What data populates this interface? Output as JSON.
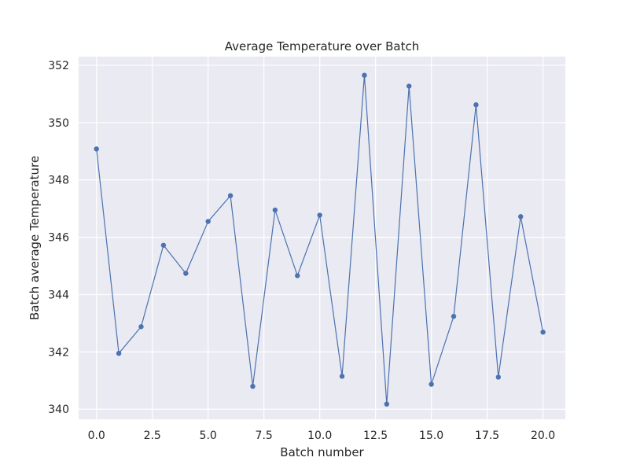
{
  "chart_data": {
    "type": "line",
    "title": "Average Temperature over Batch",
    "xlabel": "Batch number",
    "ylabel": "Batch average Temperature",
    "xlim": [
      -0.8,
      21.0
    ],
    "ylim": [
      339.65,
      352.3
    ],
    "grid": true,
    "legend": "none",
    "x_ticks": [
      0.0,
      2.5,
      5.0,
      7.5,
      10.0,
      12.5,
      15.0,
      17.5,
      20.0
    ],
    "x_tick_labels": [
      "0.0",
      "2.5",
      "5.0",
      "7.5",
      "10.0",
      "12.5",
      "15.0",
      "17.5",
      "20.0"
    ],
    "y_ticks": [
      340,
      342,
      344,
      346,
      348,
      350,
      352
    ],
    "y_tick_labels": [
      "340",
      "342",
      "344",
      "346",
      "348",
      "350",
      "352"
    ],
    "series": [
      {
        "x": [
          0,
          1,
          2,
          3,
          4,
          5,
          6,
          7,
          8,
          9,
          10,
          11,
          12,
          13,
          14,
          15,
          16,
          17,
          18,
          19,
          20
        ],
        "values": [
          349.08,
          341.95,
          342.88,
          345.72,
          344.74,
          346.55,
          347.45,
          340.8,
          346.95,
          344.66,
          346.77,
          341.15,
          351.65,
          340.18,
          351.27,
          340.87,
          343.24,
          350.62,
          341.12,
          346.72,
          342.69
        ],
        "color": "#4c72b0"
      }
    ],
    "colors": {
      "plot_background": "#eaeaf2",
      "grid": "#ffffff",
      "line": "#4c72b0"
    }
  }
}
